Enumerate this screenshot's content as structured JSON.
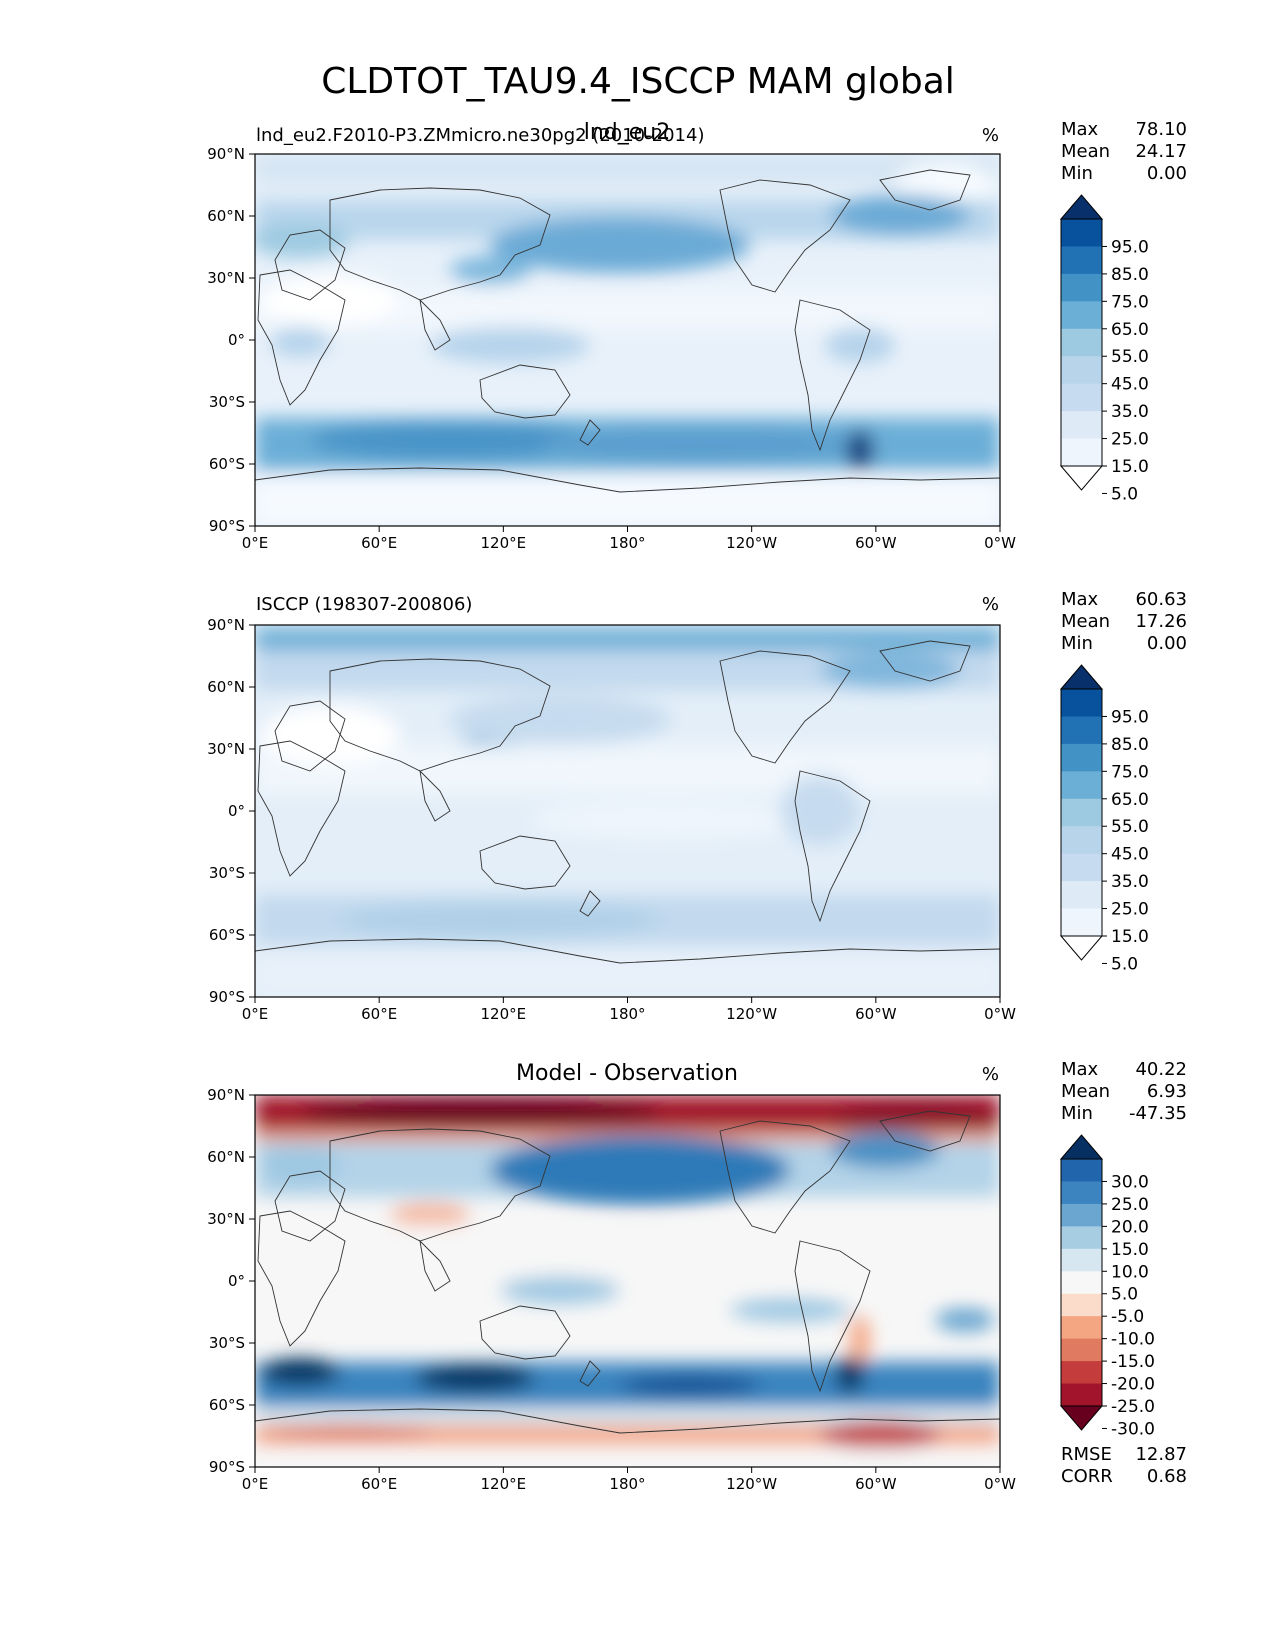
{
  "title": "CLDTOT_TAU9.4_ISCCP MAM global",
  "lat_ticks": [
    "90°N",
    "60°N",
    "30°N",
    "0°",
    "30°S",
    "60°S",
    "90°S"
  ],
  "lon_ticks": [
    "0°E",
    "60°E",
    "120°E",
    "180°",
    "120°W",
    "60°W",
    "0°W"
  ],
  "panels": [
    {
      "id": "test",
      "left_label": "lnd_eu2.F2010-P3.ZMmicro.ne30pg2 (2010-2014)",
      "center_label": "lnd_eu2",
      "units": "%",
      "stats": [
        {
          "label": "Max",
          "value": "78.10"
        },
        {
          "label": "Mean",
          "value": "24.17"
        },
        {
          "label": "Min",
          "value": "0.00"
        }
      ],
      "colorbar_labels": [
        "95.0",
        "85.0",
        "75.0",
        "65.0",
        "55.0",
        "45.0",
        "35.0",
        "25.0",
        "15.0",
        "5.0"
      ],
      "colorbar_colors": [
        "#08306b",
        "#08519c",
        "#2171b5",
        "#4292c6",
        "#6baed6",
        "#9ecae1",
        "#b7d4ea",
        "#c6dbef",
        "#deebf7",
        "#eef5fc",
        "#ffffff"
      ]
    },
    {
      "id": "reference",
      "left_label": "ISCCP (198307-200806)",
      "center_label": "",
      "units": "%",
      "stats": [
        {
          "label": "Max",
          "value": "60.63"
        },
        {
          "label": "Mean",
          "value": "17.26"
        },
        {
          "label": "Min",
          "value": "0.00"
        }
      ],
      "colorbar_labels": [
        "95.0",
        "85.0",
        "75.0",
        "65.0",
        "55.0",
        "45.0",
        "35.0",
        "25.0",
        "15.0",
        "5.0"
      ],
      "colorbar_colors": [
        "#08306b",
        "#08519c",
        "#2171b5",
        "#4292c6",
        "#6baed6",
        "#9ecae1",
        "#b7d4ea",
        "#c6dbef",
        "#deebf7",
        "#eef5fc",
        "#ffffff"
      ]
    },
    {
      "id": "difference",
      "left_label": "",
      "center_label": "Model - Observation",
      "units": "%",
      "stats": [
        {
          "label": "Max",
          "value": "40.22"
        },
        {
          "label": "Mean",
          "value": "6.93"
        },
        {
          "label": "Min",
          "value": "-47.35"
        }
      ],
      "colorbar_labels": [
        "30.0",
        "25.0",
        "20.0",
        "15.0",
        "10.0",
        "5.0",
        "-5.0",
        "-10.0",
        "-15.0",
        "-20.0",
        "-25.0",
        "-30.0"
      ],
      "colorbar_colors": [
        "#053061",
        "#2166ac",
        "#3b84bf",
        "#6aa6d0",
        "#a7cde3",
        "#d6e7f1",
        "#f7f7f7",
        "#fbdccb",
        "#f4a582",
        "#e07b62",
        "#c43c3c",
        "#a2142b",
        "#67001f"
      ],
      "bottom_stats": [
        {
          "label": "RMSE",
          "value": "12.87"
        },
        {
          "label": "CORR",
          "value": "0.68"
        }
      ]
    }
  ]
}
